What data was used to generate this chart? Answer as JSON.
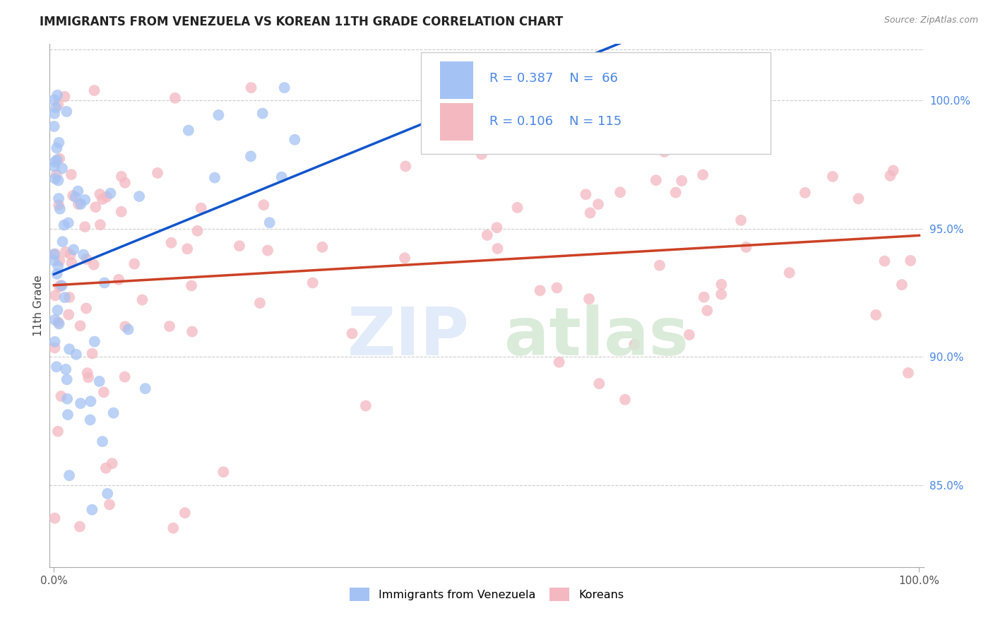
{
  "title": "IMMIGRANTS FROM VENEZUELA VS KOREAN 11TH GRADE CORRELATION CHART",
  "source": "Source: ZipAtlas.com",
  "ylabel": "11th Grade",
  "ytick_values": [
    0.85,
    0.9,
    0.95,
    1.0
  ],
  "ytick_labels": [
    "85.0%",
    "90.0%",
    "95.0%",
    "100.0%"
  ],
  "xtick_values": [
    0.0,
    1.0
  ],
  "xtick_labels": [
    "0.0%",
    "100.0%"
  ],
  "color_venezuela": "#a4c2f4",
  "color_korea": "#f4b8c1",
  "color_venezuela_line": "#1155cc",
  "color_korea_line": "#cc4125",
  "color_right_axis": "#4a86e8",
  "background_color": "#ffffff",
  "grid_color": "#cccccc",
  "ylim_min": 0.818,
  "ylim_max": 1.022,
  "xlim_min": -0.005,
  "xlim_max": 1.005,
  "legend_r1": "R = 0.387",
  "legend_n1": "N =  66",
  "legend_r2": "R = 0.106",
  "legend_n2": "N = 115",
  "marker_size": 130,
  "line_width": 2.5
}
